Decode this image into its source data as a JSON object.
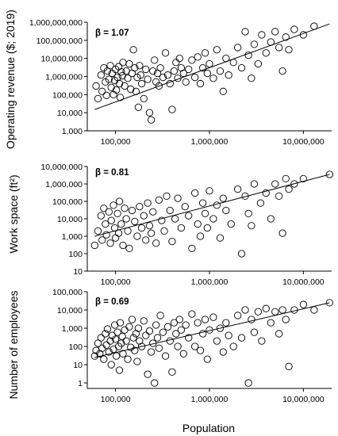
{
  "chart_data": [
    {
      "type": "scatter",
      "annotation": "β = 1.07",
      "ylabel": "Operating revenue ($; 2019)",
      "xlabel": "",
      "xscale": "log",
      "yscale": "log",
      "xlim": [
        50000,
        20000000
      ],
      "ylim": [
        1000,
        1000000000
      ],
      "xticks": [
        "100,000",
        "1,000,000",
        "10,000,000"
      ],
      "yticks": [
        "1,000",
        "10,000",
        "100,000",
        "1,000,000",
        "10,000,000",
        "100,000,000",
        "1,000,000,000"
      ],
      "fit_line": {
        "x": [
          60000,
          19000000
        ],
        "y": [
          15000,
          800000000
        ]
      },
      "points": [
        [
          62000,
          300000
        ],
        [
          65000,
          60000
        ],
        [
          70000,
          1200000
        ],
        [
          72000,
          150000
        ],
        [
          75000,
          3000000
        ],
        [
          78000,
          500000
        ],
        [
          80000,
          90000
        ],
        [
          82000,
          2000000
        ],
        [
          85000,
          700000
        ],
        [
          88000,
          4000000
        ],
        [
          90000,
          250000
        ],
        [
          92000,
          1500000
        ],
        [
          95000,
          100000
        ],
        [
          98000,
          600000
        ],
        [
          100000,
          2500000
        ],
        [
          102000,
          180000
        ],
        [
          105000,
          900000
        ],
        [
          108000,
          3500000
        ],
        [
          110000,
          400000
        ],
        [
          112000,
          70000
        ],
        [
          115000,
          1800000
        ],
        [
          118000,
          1100000
        ],
        [
          120000,
          6000000
        ],
        [
          125000,
          300000
        ],
        [
          130000,
          2000000
        ],
        [
          135000,
          800000
        ],
        [
          140000,
          5000000
        ],
        [
          145000,
          200000
        ],
        [
          150000,
          1500000
        ],
        [
          155000,
          30000000
        ],
        [
          160000,
          3000000
        ],
        [
          165000,
          150000
        ],
        [
          170000,
          900000
        ],
        [
          175000,
          20000
        ],
        [
          180000,
          4000000
        ],
        [
          185000,
          1200000
        ],
        [
          190000,
          400000
        ],
        [
          200000,
          60000
        ],
        [
          210000,
          2500000
        ],
        [
          220000,
          700000
        ],
        [
          230000,
          10000
        ],
        [
          240000,
          4000
        ],
        [
          250000,
          2000000
        ],
        [
          260000,
          8000000
        ],
        [
          270000,
          500000
        ],
        [
          280000,
          1500000
        ],
        [
          290000,
          300000
        ],
        [
          300000,
          3000000
        ],
        [
          320000,
          900000
        ],
        [
          340000,
          20000000
        ],
        [
          360000,
          1200000
        ],
        [
          380000,
          400000
        ],
        [
          400000,
          15000
        ],
        [
          420000,
          2000000
        ],
        [
          440000,
          6000000
        ],
        [
          460000,
          800000
        ],
        [
          480000,
          10000000
        ],
        [
          500000,
          3000000
        ],
        [
          530000,
          1500000
        ],
        [
          560000,
          500000
        ],
        [
          600000,
          2500000
        ],
        [
          650000,
          8000000
        ],
        [
          700000,
          900000
        ],
        [
          750000,
          12000000
        ],
        [
          800000,
          400000
        ],
        [
          850000,
          3000000
        ],
        [
          900000,
          20000000
        ],
        [
          950000,
          1500000
        ],
        [
          1000000,
          5000000
        ],
        [
          1100000,
          800000
        ],
        [
          1200000,
          30000000
        ],
        [
          1300000,
          2000000
        ],
        [
          1400000,
          150000
        ],
        [
          1500000,
          10000000
        ],
        [
          1600000,
          1200000
        ],
        [
          1800000,
          6000000
        ],
        [
          2000000,
          40000000
        ],
        [
          2200000,
          3000000
        ],
        [
          2400000,
          300000000
        ],
        [
          2600000,
          15000000
        ],
        [
          2800000,
          800000
        ],
        [
          3000000,
          60000000
        ],
        [
          3300000,
          5000000
        ],
        [
          3600000,
          200000000
        ],
        [
          4000000,
          20000000
        ],
        [
          4500000,
          80000000
        ],
        [
          5000000,
          300000000
        ],
        [
          5500000,
          40000000
        ],
        [
          6000000,
          2000000
        ],
        [
          6500000,
          150000000
        ],
        [
          7000000,
          30000000
        ],
        [
          8000000,
          400000000
        ],
        [
          10000000,
          200000000
        ],
        [
          13000000,
          600000000
        ]
      ]
    },
    {
      "type": "scatter",
      "annotation": "β = 0.81",
      "ylabel": "Work space (ft²)",
      "xlabel": "",
      "xscale": "log",
      "yscale": "log",
      "xlim": [
        50000,
        20000000
      ],
      "ylim": [
        10,
        10000000
      ],
      "xticks": [
        "100,000",
        "1,000,000",
        "10,000,000"
      ],
      "yticks": [
        "10",
        "100",
        "1,000",
        "10,000",
        "100,000",
        "1,000,000",
        "10,000,000"
      ],
      "fit_line": {
        "x": [
          60000,
          19000000
        ],
        "y": [
          1000,
          3500000
        ]
      },
      "points": [
        [
          60000,
          300
        ],
        [
          65000,
          2000
        ],
        [
          70000,
          15000
        ],
        [
          72000,
          600
        ],
        [
          75000,
          40000
        ],
        [
          78000,
          5000
        ],
        [
          80000,
          1200
        ],
        [
          85000,
          25000
        ],
        [
          88000,
          400
        ],
        [
          90000,
          8000
        ],
        [
          95000,
          60000
        ],
        [
          98000,
          3000
        ],
        [
          100000,
          800
        ],
        [
          105000,
          20000
        ],
        [
          108000,
          1500
        ],
        [
          110000,
          100000
        ],
        [
          115000,
          5000
        ],
        [
          120000,
          300
        ],
        [
          125000,
          40000
        ],
        [
          130000,
          10000
        ],
        [
          135000,
          2000
        ],
        [
          140000,
          200
        ],
        [
          150000,
          30000
        ],
        [
          160000,
          7000
        ],
        [
          170000,
          1000
        ],
        [
          180000,
          50000
        ],
        [
          190000,
          3000
        ],
        [
          200000,
          15000
        ],
        [
          210000,
          600
        ],
        [
          220000,
          80000
        ],
        [
          230000,
          4000
        ],
        [
          240000,
          1500
        ],
        [
          250000,
          25000
        ],
        [
          270000,
          400
        ],
        [
          290000,
          120000
        ],
        [
          310000,
          8000
        ],
        [
          330000,
          2000
        ],
        [
          350000,
          200000
        ],
        [
          380000,
          30000
        ],
        [
          400000,
          500
        ],
        [
          430000,
          10000
        ],
        [
          460000,
          150000
        ],
        [
          500000,
          3000
        ],
        [
          550000,
          50000
        ],
        [
          600000,
          15000
        ],
        [
          650000,
          200
        ],
        [
          700000,
          300000
        ],
        [
          750000,
          5000
        ],
        [
          800000,
          1000
        ],
        [
          850000,
          80000
        ],
        [
          900000,
          20000
        ],
        [
          950000,
          3000
        ],
        [
          1000000,
          400000
        ],
        [
          1100000,
          10000
        ],
        [
          1200000,
          60000
        ],
        [
          1300000,
          800
        ],
        [
          1400000,
          150000
        ],
        [
          1500000,
          30000
        ],
        [
          1700000,
          5000
        ],
        [
          2000000,
          500000
        ],
        [
          2200000,
          100
        ],
        [
          2400000,
          200000
        ],
        [
          2600000,
          20000
        ],
        [
          2800000,
          4000
        ],
        [
          3000000,
          1000000
        ],
        [
          3500000,
          80000
        ],
        [
          4000000,
          300000
        ],
        [
          4500000,
          10000
        ],
        [
          5000000,
          1000000
        ],
        [
          5500000,
          200000
        ],
        [
          6000000,
          1500
        ],
        [
          6500000,
          2000000
        ],
        [
          7000000,
          500000
        ],
        [
          8000000,
          1000000
        ],
        [
          10000000,
          2000000
        ],
        [
          19000000,
          3500000
        ]
      ]
    },
    {
      "type": "scatter",
      "annotation": "β = 0.69",
      "ylabel": "Number of employees",
      "xlabel": "Population",
      "xscale": "log",
      "yscale": "log",
      "xlim": [
        50000,
        20000000
      ],
      "ylim": [
        0.5,
        100000
      ],
      "xticks": [
        "100,000",
        "1,000,000",
        "10,000,000"
      ],
      "yticks": [
        "1",
        "10",
        "100",
        "1,000",
        "10,000",
        "100,000"
      ],
      "fit_line": {
        "x": [
          60000,
          19000000
        ],
        "y": [
          25,
          25000
        ]
      },
      "points": [
        [
          60000,
          30
        ],
        [
          62000,
          60
        ],
        [
          65000,
          150
        ],
        [
          68000,
          40
        ],
        [
          70000,
          300
        ],
        [
          72000,
          80
        ],
        [
          75000,
          20
        ],
        [
          78000,
          500
        ],
        [
          80000,
          120
        ],
        [
          82000,
          900
        ],
        [
          85000,
          50
        ],
        [
          88000,
          200
        ],
        [
          90000,
          10
        ],
        [
          92000,
          400
        ],
        [
          95000,
          70
        ],
        [
          98000,
          1500
        ],
        [
          100000,
          250
        ],
        [
          102000,
          30
        ],
        [
          105000,
          600
        ],
        [
          108000,
          100
        ],
        [
          110000,
          5
        ],
        [
          112000,
          2000
        ],
        [
          115000,
          150
        ],
        [
          118000,
          350
        ],
        [
          120000,
          40
        ],
        [
          125000,
          800
        ],
        [
          130000,
          200
        ],
        [
          135000,
          20
        ],
        [
          140000,
          1200
        ],
        [
          145000,
          90
        ],
        [
          150000,
          3000
        ],
        [
          155000,
          300
        ],
        [
          160000,
          60
        ],
        [
          165000,
          500
        ],
        [
          170000,
          15
        ],
        [
          175000,
          1000
        ],
        [
          180000,
          200
        ],
        [
          190000,
          100
        ],
        [
          200000,
          2500
        ],
        [
          210000,
          400
        ],
        [
          220000,
          3
        ],
        [
          230000,
          700
        ],
        [
          240000,
          50
        ],
        [
          250000,
          150
        ],
        [
          260000,
          1
        ],
        [
          270000,
          1500
        ],
        [
          280000,
          300
        ],
        [
          290000,
          80
        ],
        [
          300000,
          5000
        ],
        [
          320000,
          600
        ],
        [
          340000,
          30
        ],
        [
          360000,
          1200
        ],
        [
          380000,
          200
        ],
        [
          400000,
          4
        ],
        [
          420000,
          2000
        ],
        [
          440000,
          500
        ],
        [
          460000,
          100
        ],
        [
          480000,
          3000
        ],
        [
          500000,
          800
        ],
        [
          530000,
          40
        ],
        [
          560000,
          1500
        ],
        [
          600000,
          300
        ],
        [
          650000,
          6000
        ],
        [
          700000,
          100
        ],
        [
          750000,
          2000
        ],
        [
          800000,
          60
        ],
        [
          850000,
          500
        ],
        [
          900000,
          3000
        ],
        [
          950000,
          20
        ],
        [
          1000000,
          800
        ],
        [
          1100000,
          4000
        ],
        [
          1200000,
          200
        ],
        [
          1300000,
          1000
        ],
        [
          1400000,
          50
        ],
        [
          1500000,
          2000
        ],
        [
          1600000,
          400
        ],
        [
          1800000,
          100
        ],
        [
          2000000,
          5000
        ],
        [
          2200000,
          300
        ],
        [
          2400000,
          10000
        ],
        [
          2600000,
          1
        ],
        [
          2800000,
          3000
        ],
        [
          3000000,
          600
        ],
        [
          3300000,
          8000
        ],
        [
          3600000,
          200
        ],
        [
          4000000,
          12000
        ],
        [
          4500000,
          2000
        ],
        [
          5000000,
          8000
        ],
        [
          5500000,
          500
        ],
        [
          6000000,
          10000
        ],
        [
          6500000,
          3000
        ],
        [
          7000000,
          8
        ],
        [
          8000000,
          10000
        ],
        [
          10000000,
          20000
        ],
        [
          13000000,
          10000
        ],
        [
          19000000,
          25000
        ]
      ]
    }
  ]
}
